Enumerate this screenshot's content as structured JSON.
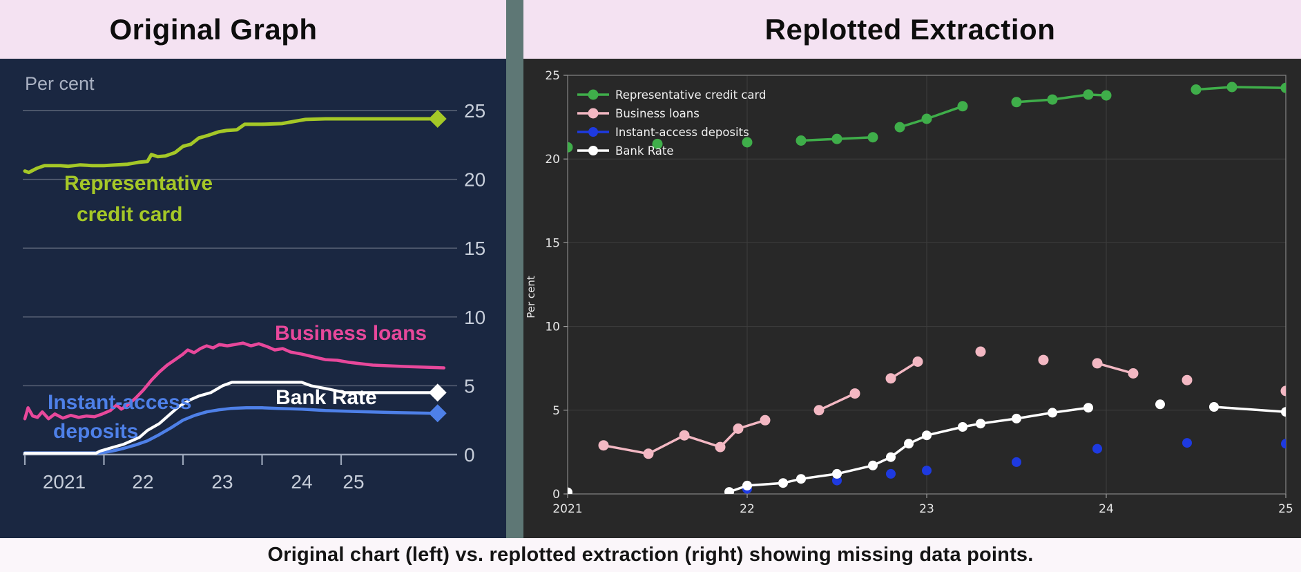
{
  "page": {
    "caption": "Original chart (left) vs. replotted extraction (right) showing missing data points.",
    "background": "#fbf6fa",
    "divider_color": "#5e7775",
    "header_bg": "#f4e2f2"
  },
  "left_panel": {
    "title": "Original Graph",
    "panel_bg": "#1a2741",
    "unit_label": "Per cent",
    "grid_color": "#5c6679",
    "axis_color": "#9aa5b8",
    "tick_label_color": "#c6cdd9",
    "unit_label_color": "#a9b1c2"
  },
  "right_panel": {
    "title": "Replotted Extraction",
    "panel_bg": "#282828",
    "ylabel": "Per cent",
    "grid_color": "#3e3e3e",
    "spine_color": "#7f7f7f",
    "tick_color": "#9a9a9a",
    "tick_label_color": "#e6e6e6",
    "legend_text_color": "#f0f0f0"
  },
  "chart_data": [
    {
      "type": "line",
      "title": "Original Graph",
      "ylabel": "Per cent",
      "xlim": [
        2021,
        2026.45
      ],
      "ylim": [
        0,
        27
      ],
      "x_ticks": [
        2021,
        2022,
        2023,
        2024,
        2025
      ],
      "x_tick_labels": [
        "2021",
        "22",
        "23",
        "24",
        "25"
      ],
      "y_ticks": [
        0,
        5,
        10,
        15,
        20,
        25
      ],
      "y_tick_labels": [
        "0",
        "5",
        "10",
        "15",
        "20",
        "25"
      ],
      "grid": "horizontal",
      "series": [
        {
          "name": "Representative credit card",
          "label_lines": [
            "Representative",
            "credit card"
          ],
          "color": "#a5c827",
          "end_marker": "diamond",
          "end_value": 24.4,
          "points": [
            [
              2021.0,
              20.6
            ],
            [
              2021.05,
              20.5
            ],
            [
              2021.15,
              20.8
            ],
            [
              2021.25,
              21.0
            ],
            [
              2021.45,
              21.0
            ],
            [
              2021.55,
              20.95
            ],
            [
              2021.7,
              21.05
            ],
            [
              2021.85,
              21.0
            ],
            [
              2022.0,
              21.0
            ],
            [
              2022.15,
              21.05
            ],
            [
              2022.3,
              21.1
            ],
            [
              2022.45,
              21.25
            ],
            [
              2022.55,
              21.3
            ],
            [
              2022.6,
              21.8
            ],
            [
              2022.68,
              21.65
            ],
            [
              2022.78,
              21.7
            ],
            [
              2022.9,
              21.95
            ],
            [
              2023.0,
              22.4
            ],
            [
              2023.1,
              22.55
            ],
            [
              2023.2,
              23.0
            ],
            [
              2023.32,
              23.2
            ],
            [
              2023.45,
              23.45
            ],
            [
              2023.55,
              23.55
            ],
            [
              2023.68,
              23.6
            ],
            [
              2023.78,
              24.0
            ],
            [
              2024.0,
              24.0
            ],
            [
              2024.25,
              24.05
            ],
            [
              2024.4,
              24.2
            ],
            [
              2024.55,
              24.35
            ],
            [
              2024.8,
              24.4
            ],
            [
              2026.15,
              24.4
            ]
          ]
        },
        {
          "name": "Business loans",
          "label_lines": [
            "Business loans"
          ],
          "color": "#e8489b",
          "end_marker": null,
          "end_value": 6.3,
          "points": [
            [
              2021.0,
              2.6
            ],
            [
              2021.04,
              3.4
            ],
            [
              2021.1,
              2.8
            ],
            [
              2021.16,
              2.7
            ],
            [
              2021.22,
              3.1
            ],
            [
              2021.3,
              2.6
            ],
            [
              2021.38,
              2.95
            ],
            [
              2021.48,
              2.65
            ],
            [
              2021.58,
              2.85
            ],
            [
              2021.68,
              2.7
            ],
            [
              2021.78,
              2.8
            ],
            [
              2021.88,
              2.75
            ],
            [
              2021.98,
              2.95
            ],
            [
              2022.08,
              3.2
            ],
            [
              2022.16,
              3.6
            ],
            [
              2022.22,
              3.3
            ],
            [
              2022.3,
              3.6
            ],
            [
              2022.4,
              4.1
            ],
            [
              2022.5,
              4.7
            ],
            [
              2022.6,
              5.4
            ],
            [
              2022.7,
              6.0
            ],
            [
              2022.8,
              6.5
            ],
            [
              2022.9,
              6.9
            ],
            [
              2023.0,
              7.3
            ],
            [
              2023.06,
              7.6
            ],
            [
              2023.14,
              7.4
            ],
            [
              2023.22,
              7.7
            ],
            [
              2023.3,
              7.9
            ],
            [
              2023.38,
              7.75
            ],
            [
              2023.46,
              8.0
            ],
            [
              2023.56,
              7.9
            ],
            [
              2023.66,
              8.0
            ],
            [
              2023.76,
              8.1
            ],
            [
              2023.86,
              7.9
            ],
            [
              2023.96,
              8.05
            ],
            [
              2024.06,
              7.85
            ],
            [
              2024.16,
              7.6
            ],
            [
              2024.26,
              7.7
            ],
            [
              2024.36,
              7.45
            ],
            [
              2024.5,
              7.3
            ],
            [
              2024.65,
              7.1
            ],
            [
              2024.8,
              6.9
            ],
            [
              2024.95,
              6.85
            ],
            [
              2025.1,
              6.7
            ],
            [
              2025.4,
              6.5
            ],
            [
              2025.8,
              6.4
            ],
            [
              2026.3,
              6.3
            ]
          ]
        },
        {
          "name": "Instant-access deposits",
          "label_lines": [
            "Instant-access",
            "deposits"
          ],
          "color": "#4e80e8",
          "end_marker": "diamond",
          "end_value": 3.0,
          "points": [
            [
              2021.0,
              0.12
            ],
            [
              2021.95,
              0.12
            ],
            [
              2022.1,
              0.25
            ],
            [
              2022.25,
              0.45
            ],
            [
              2022.4,
              0.7
            ],
            [
              2022.55,
              1.0
            ],
            [
              2022.7,
              1.45
            ],
            [
              2022.85,
              1.95
            ],
            [
              2023.0,
              2.5
            ],
            [
              2023.15,
              2.85
            ],
            [
              2023.3,
              3.1
            ],
            [
              2023.45,
              3.25
            ],
            [
              2023.6,
              3.35
            ],
            [
              2023.8,
              3.4
            ],
            [
              2024.0,
              3.4
            ],
            [
              2024.2,
              3.35
            ],
            [
              2024.5,
              3.3
            ],
            [
              2024.8,
              3.2
            ],
            [
              2025.2,
              3.12
            ],
            [
              2025.7,
              3.05
            ],
            [
              2026.15,
              3.0
            ]
          ]
        },
        {
          "name": "Bank Rate",
          "label_lines": [
            "Bank Rate"
          ],
          "color": "#ffffff",
          "end_marker": "diamond",
          "end_value": 4.5,
          "points": [
            [
              2021.0,
              0.1
            ],
            [
              2021.9,
              0.1
            ],
            [
              2021.95,
              0.25
            ],
            [
              2022.1,
              0.5
            ],
            [
              2022.25,
              0.75
            ],
            [
              2022.35,
              1.0
            ],
            [
              2022.45,
              1.25
            ],
            [
              2022.55,
              1.75
            ],
            [
              2022.7,
              2.25
            ],
            [
              2022.85,
              3.0
            ],
            [
              2022.95,
              3.5
            ],
            [
              2023.1,
              4.0
            ],
            [
              2023.2,
              4.25
            ],
            [
              2023.35,
              4.5
            ],
            [
              2023.5,
              5.0
            ],
            [
              2023.62,
              5.25
            ],
            [
              2024.5,
              5.25
            ],
            [
              2024.62,
              5.0
            ],
            [
              2024.85,
              4.75
            ],
            [
              2025.05,
              4.5
            ],
            [
              2026.15,
              4.5
            ]
          ]
        }
      ]
    },
    {
      "type": "line-scatter",
      "title": "Replotted Extraction",
      "ylabel": "Per cent",
      "xlim": [
        2021,
        2025
      ],
      "ylim": [
        0,
        25
      ],
      "x_ticks": [
        2021,
        2022,
        2023,
        2024,
        2025
      ],
      "x_tick_labels": [
        "2021",
        "22",
        "23",
        "24",
        "25"
      ],
      "y_ticks": [
        0,
        5,
        10,
        15,
        20,
        25
      ],
      "y_tick_labels": [
        "0",
        "5",
        "10",
        "15",
        "20",
        "25"
      ],
      "grid": "both",
      "legend_position": "upper-left",
      "series": [
        {
          "name": "Representative credit card",
          "color": "#3fae4a",
          "marker_radius": 7.5,
          "segments": [
            [
              [
                2021.0,
                20.7
              ]
            ],
            [
              [
                2021.5,
                20.9
              ]
            ],
            [
              [
                2022.0,
                21.0
              ]
            ],
            [
              [
                2022.3,
                21.1
              ],
              [
                2022.5,
                21.2
              ],
              [
                2022.7,
                21.3
              ]
            ],
            [
              [
                2022.85,
                21.9
              ],
              [
                2023.0,
                22.4
              ],
              [
                2023.2,
                23.15
              ]
            ],
            [
              [
                2023.5,
                23.4
              ],
              [
                2023.7,
                23.55
              ],
              [
                2023.9,
                23.85
              ],
              [
                2024.0,
                23.8
              ]
            ],
            [
              [
                2024.5,
                24.15
              ],
              [
                2024.7,
                24.3
              ],
              [
                2025.0,
                24.25
              ]
            ]
          ]
        },
        {
          "name": "Business loans",
          "color": "#f3b8c3",
          "marker_radius": 7.5,
          "segments": [
            [
              [
                2021.2,
                2.9
              ],
              [
                2021.45,
                2.4
              ],
              [
                2021.65,
                3.5
              ],
              [
                2021.85,
                2.8
              ],
              [
                2021.95,
                3.9
              ],
              [
                2022.1,
                4.4
              ]
            ],
            [
              [
                2022.4,
                5.0
              ],
              [
                2022.6,
                6.0
              ]
            ],
            [
              [
                2022.8,
                6.9
              ],
              [
                2022.95,
                7.9
              ]
            ],
            [
              [
                2023.3,
                8.5
              ]
            ],
            [
              [
                2023.65,
                8.0
              ]
            ],
            [
              [
                2023.95,
                7.8
              ],
              [
                2024.15,
                7.2
              ]
            ],
            [
              [
                2024.45,
                6.8
              ]
            ],
            [
              [
                2025.0,
                6.15
              ]
            ]
          ]
        },
        {
          "name": "Instant-access deposits",
          "color": "#1e3ae0",
          "marker_radius": 7,
          "segments": [
            [
              [
                2022.0,
                0.3
              ]
            ],
            [
              [
                2022.5,
                0.8
              ]
            ],
            [
              [
                2022.8,
                1.2
              ]
            ],
            [
              [
                2023.0,
                1.4
              ]
            ],
            [
              [
                2023.5,
                1.9
              ]
            ],
            [
              [
                2023.95,
                2.7
              ]
            ],
            [
              [
                2024.45,
                3.05
              ]
            ],
            [
              [
                2025.0,
                3.0
              ]
            ]
          ]
        },
        {
          "name": "Bank Rate",
          "color": "#ffffff",
          "marker_radius": 7,
          "segments": [
            [
              [
                2021.0,
                0.1
              ]
            ],
            [
              [
                2021.9,
                0.12
              ],
              [
                2022.0,
                0.5
              ],
              [
                2022.2,
                0.65
              ],
              [
                2022.3,
                0.9
              ],
              [
                2022.5,
                1.2
              ],
              [
                2022.7,
                1.7
              ],
              [
                2022.8,
                2.2
              ],
              [
                2022.9,
                3.0
              ],
              [
                2023.0,
                3.5
              ],
              [
                2023.2,
                4.0
              ],
              [
                2023.3,
                4.2
              ],
              [
                2023.5,
                4.5
              ],
              [
                2023.7,
                4.85
              ],
              [
                2023.9,
                5.15
              ]
            ],
            [
              [
                2024.3,
                5.35
              ]
            ],
            [
              [
                2024.6,
                5.2
              ],
              [
                2025.0,
                4.9
              ]
            ]
          ]
        }
      ]
    }
  ]
}
